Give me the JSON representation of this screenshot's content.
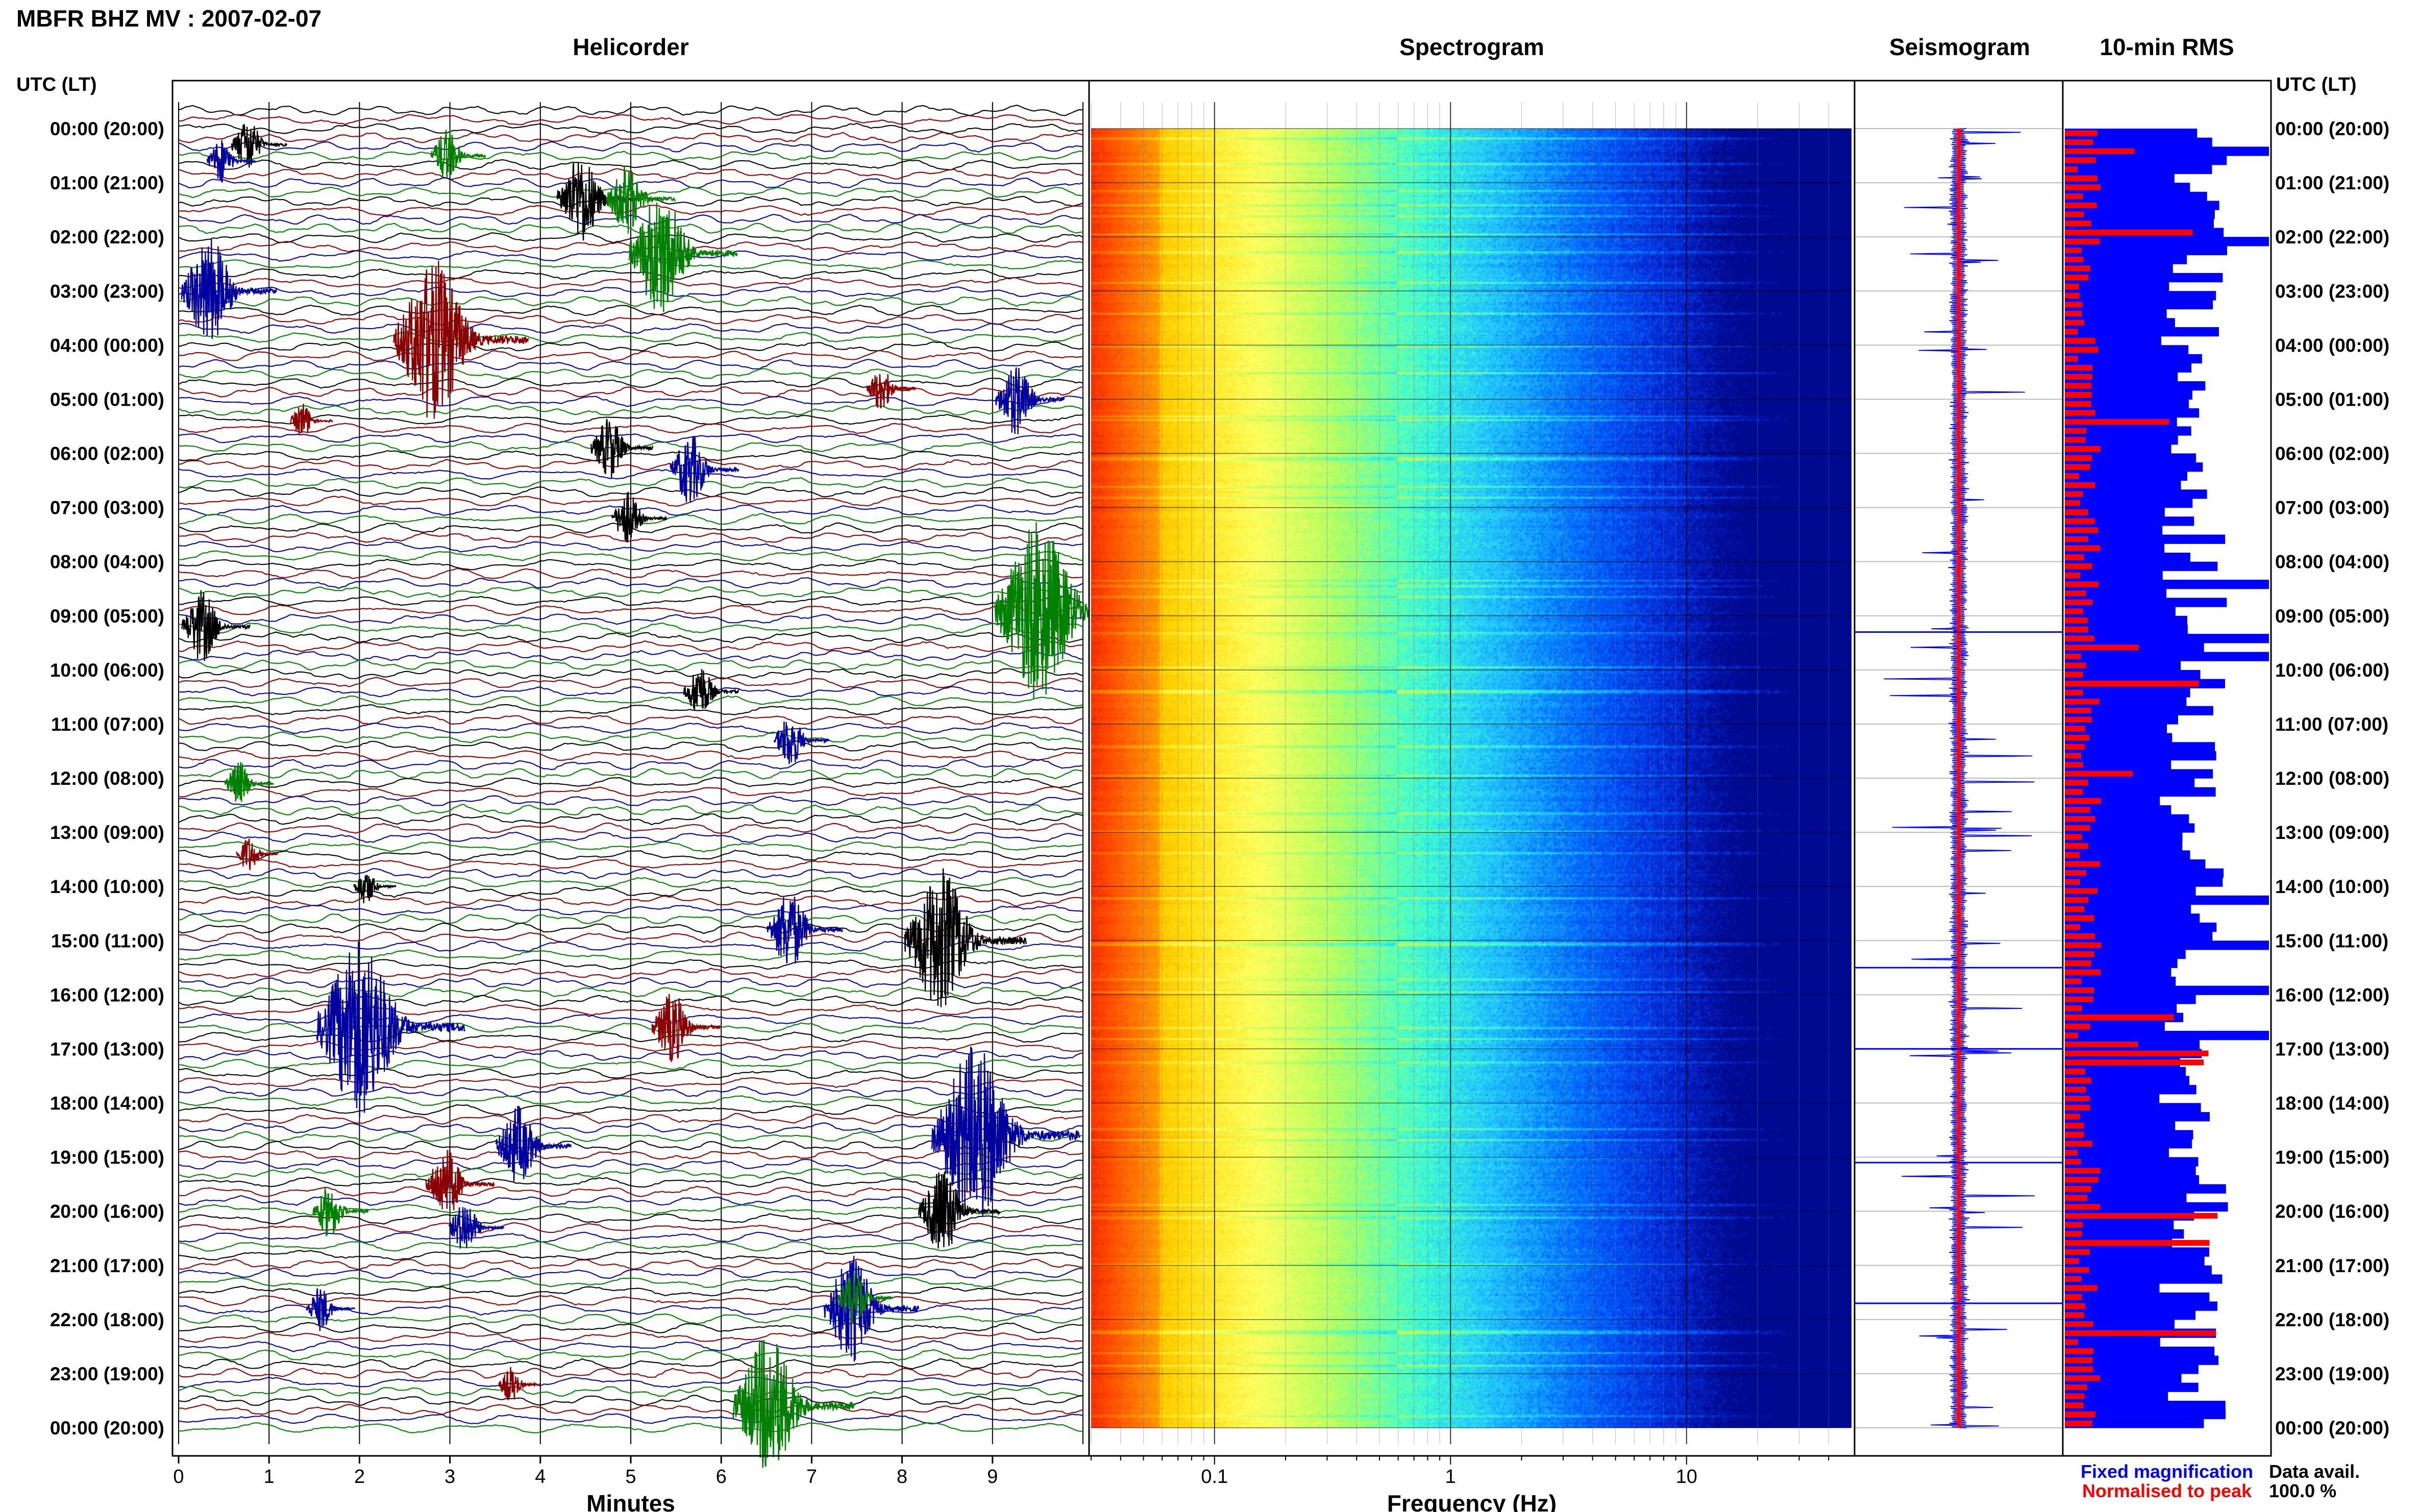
{
  "page": {
    "title": "MBFR BHZ MV : 2007-02-07",
    "left_axis_header": "UTC (LT)",
    "right_axis_header": "UTC (LT)"
  },
  "time_labels": [
    "00:00 (20:00)",
    "01:00 (21:00)",
    "02:00 (22:00)",
    "03:00 (23:00)",
    "04:00 (00:00)",
    "05:00 (01:00)",
    "06:00 (02:00)",
    "07:00 (03:00)",
    "08:00 (04:00)",
    "09:00 (05:00)",
    "10:00 (06:00)",
    "11:00 (07:00)",
    "12:00 (08:00)",
    "13:00 (09:00)",
    "14:00 (10:00)",
    "15:00 (11:00)",
    "16:00 (12:00)",
    "17:00 (13:00)",
    "18:00 (14:00)",
    "19:00 (15:00)",
    "20:00 (16:00)",
    "21:00 (17:00)",
    "22:00 (18:00)",
    "23:00 (19:00)",
    "00:00 (20:00)"
  ],
  "legend": {
    "fixed": "Fixed magnification",
    "normalised": "Normalised to peak",
    "fixed_color": "#0000ff",
    "normalised_color": "#ff0000"
  },
  "data_avail": {
    "label": "Data avail.",
    "value": "100.0 %"
  },
  "chart_data": [
    {
      "type": "line",
      "title": "Helicorder",
      "xlabel": "Minutes",
      "xlim": [
        0,
        10
      ],
      "x_ticks": [
        "0",
        "1",
        "2",
        "3",
        "4",
        "5",
        "6",
        "7",
        "8",
        "9"
      ],
      "rows": 144,
      "trace_colors": [
        "#000000",
        "#8b0000",
        "#0000a0",
        "#008000"
      ],
      "events": [
        {
          "hour": 0.3,
          "minute": 0.8,
          "amp": 3.0,
          "color": "#000000"
        },
        {
          "hour": 0.5,
          "minute": 3.0,
          "amp": 3.0,
          "color": "#008000"
        },
        {
          "hour": 0.6,
          "minute": 0.5,
          "amp": 2.5,
          "color": "#0000a0"
        },
        {
          "hour": 1.3,
          "minute": 4.5,
          "amp": 5.0,
          "color": "#000000"
        },
        {
          "hour": 1.3,
          "minute": 5.0,
          "amp": 4.0,
          "color": "#008000"
        },
        {
          "hour": 2.3,
          "minute": 5.4,
          "amp": 7.0,
          "color": "#008000"
        },
        {
          "hour": 3.0,
          "minute": 0.4,
          "amp": 6.0,
          "color": "#0000a0"
        },
        {
          "hour": 3.9,
          "minute": 2.9,
          "amp": 9.0,
          "color": "#8b0000"
        },
        {
          "hour": 4.8,
          "minute": 7.8,
          "amp": 2.5,
          "color": "#8b0000"
        },
        {
          "hour": 5.0,
          "minute": 9.3,
          "amp": 4.0,
          "color": "#0000a0"
        },
        {
          "hour": 5.4,
          "minute": 1.4,
          "amp": 2.0,
          "color": "#8b0000"
        },
        {
          "hour": 5.9,
          "minute": 4.8,
          "amp": 3.5,
          "color": "#000000"
        },
        {
          "hour": 6.3,
          "minute": 5.7,
          "amp": 4.0,
          "color": "#0000a0"
        },
        {
          "hour": 7.2,
          "minute": 5.0,
          "amp": 3.0,
          "color": "#000000"
        },
        {
          "hour": 8.9,
          "minute": 9.6,
          "amp": 10.0,
          "color": "#008000"
        },
        {
          "hour": 9.2,
          "minute": 0.3,
          "amp": 4.0,
          "color": "#000000"
        },
        {
          "hour": 10.4,
          "minute": 5.8,
          "amp": 3.0,
          "color": "#000000"
        },
        {
          "hour": 11.3,
          "minute": 6.8,
          "amp": 3.0,
          "color": "#0000a0"
        },
        {
          "hour": 12.1,
          "minute": 0.7,
          "amp": 2.5,
          "color": "#008000"
        },
        {
          "hour": 13.4,
          "minute": 0.8,
          "amp": 2.0,
          "color": "#8b0000"
        },
        {
          "hour": 14.0,
          "minute": 2.1,
          "amp": 2.0,
          "color": "#000000"
        },
        {
          "hour": 14.8,
          "minute": 6.8,
          "amp": 4.5,
          "color": "#0000a0"
        },
        {
          "hour": 15.0,
          "minute": 8.5,
          "amp": 8.0,
          "color": "#000000"
        },
        {
          "hour": 16.6,
          "minute": 2.1,
          "amp": 10.0,
          "color": "#0000a0"
        },
        {
          "hour": 16.6,
          "minute": 5.5,
          "amp": 4.0,
          "color": "#8b0000"
        },
        {
          "hour": 18.6,
          "minute": 8.9,
          "amp": 10.0,
          "color": "#0000a0"
        },
        {
          "hour": 18.8,
          "minute": 3.8,
          "amp": 4.5,
          "color": "#0000a0"
        },
        {
          "hour": 19.5,
          "minute": 3.0,
          "amp": 4.0,
          "color": "#8b0000"
        },
        {
          "hour": 20.0,
          "minute": 8.5,
          "amp": 5.0,
          "color": "#000000"
        },
        {
          "hour": 20.0,
          "minute": 1.7,
          "amp": 3.0,
          "color": "#008000"
        },
        {
          "hour": 20.3,
          "minute": 3.2,
          "amp": 3.0,
          "color": "#0000a0"
        },
        {
          "hour": 21.8,
          "minute": 7.5,
          "amp": 6.0,
          "color": "#0000a0"
        },
        {
          "hour": 21.6,
          "minute": 7.5,
          "amp": 3.0,
          "color": "#008000"
        },
        {
          "hour": 21.8,
          "minute": 1.6,
          "amp": 2.5,
          "color": "#0000a0"
        },
        {
          "hour": 23.2,
          "minute": 3.7,
          "amp": 2.0,
          "color": "#8b0000"
        },
        {
          "hour": 23.6,
          "minute": 6.6,
          "amp": 8.0,
          "color": "#008000"
        }
      ]
    },
    {
      "type": "heatmap",
      "title": "Spectrogram",
      "xlabel": "Frequency (Hz)",
      "scale": "log",
      "xlim": [
        0.03,
        50
      ],
      "x_tick_labels": [
        {
          "value": 0.1,
          "label": "0.1"
        },
        {
          "value": 1,
          "label": "1"
        },
        {
          "value": 10,
          "label": "10"
        }
      ],
      "colormap": [
        "#c00000",
        "#ff4000",
        "#ff8c00",
        "#ffd700",
        "#ffff60",
        "#b0ff60",
        "#40ffd0",
        "#20c0ff",
        "#0070ff",
        "#0030e0",
        "#000a90"
      ]
    },
    {
      "type": "line",
      "title": "Seismogram",
      "series": [
        {
          "name": "Fixed magnification",
          "color": "#0000ff"
        },
        {
          "name": "Normalised to peak",
          "color": "#ff0000"
        }
      ]
    },
    {
      "type": "bar",
      "title": "10-min RMS",
      "bins": 144,
      "series": [
        {
          "name": "Fixed magnification",
          "color": "#0000ff"
        },
        {
          "name": "Normalised to peak",
          "color": "#ff0000"
        }
      ]
    }
  ]
}
